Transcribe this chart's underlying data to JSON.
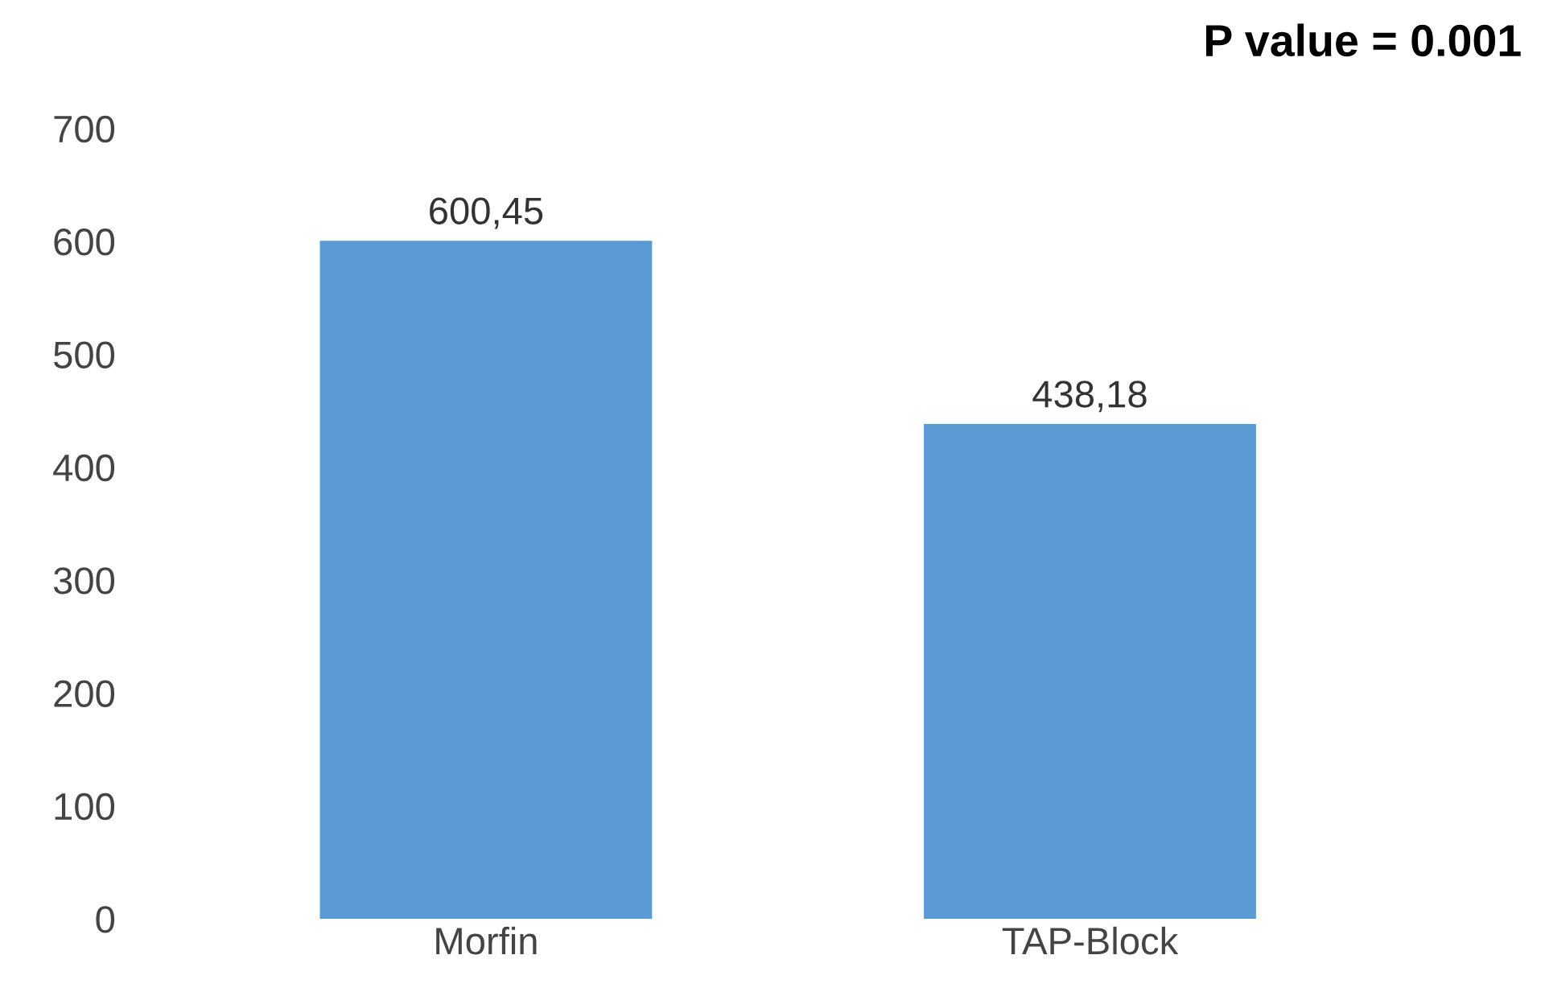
{
  "chart_data": {
    "type": "bar",
    "categories": [
      "Morfin",
      "TAP-Block"
    ],
    "values": [
      600.45,
      438.18
    ],
    "value_labels": [
      "600,45",
      "438,18"
    ],
    "color": "#5b9bd5",
    "ylim": [
      0,
      700
    ],
    "yticks": [
      0,
      100,
      200,
      300,
      400,
      500,
      600,
      700
    ],
    "grid": false,
    "legend": false,
    "annotations": [
      "P value = 0.001"
    ]
  }
}
